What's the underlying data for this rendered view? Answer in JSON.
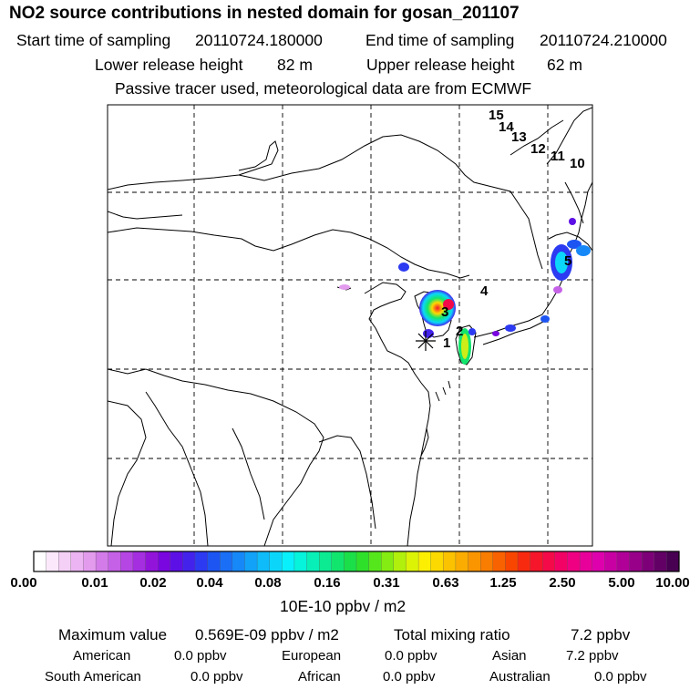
{
  "header": {
    "title": "NO2 source contributions in nested domain for gosan_201107",
    "start_label": "Start time of sampling",
    "start_value": "20110724.180000",
    "end_label": "End time of sampling",
    "end_value": "20110724.210000",
    "lower_label": "Lower release height",
    "lower_value": "82 m",
    "upper_label": "Upper release height",
    "upper_value": "62 m",
    "tracer_note": "Passive tracer used, meteorological data are from ECMWF"
  },
  "map": {
    "receptor_marker": "asterisk-icon",
    "coastline_color": "#000000",
    "grid_style": "dashed",
    "region_labels": [
      "1",
      "2",
      "3",
      "4",
      "5",
      "10",
      "11",
      "12",
      "13",
      "14",
      "15"
    ]
  },
  "colorbar": {
    "ticks": [
      "0.00",
      "0.01",
      "0.02",
      "0.04",
      "0.08",
      "0.16",
      "0.31",
      "0.63",
      "1.25",
      "2.50",
      "5.00",
      "10.00"
    ],
    "units": "10E-10 ppbv / m2",
    "colors": [
      "#ffffff",
      "#fbe8fb",
      "#f4d0f6",
      "#ecb4f2",
      "#e39bee",
      "#d37be9",
      "#c561e7",
      "#b646e4",
      "#a42ee0",
      "#9214da",
      "#7a06e0",
      "#5d10e6",
      "#4322ec",
      "#2c3af1",
      "#1d55f3",
      "#1a6ff6",
      "#1688f8",
      "#12a2f8",
      "#0fbcf9",
      "#0bd6fa",
      "#08f0fb",
      "#06f3dc",
      "#08efb8",
      "#0ceb92",
      "#12e56d",
      "#1bdf48",
      "#2fe02a",
      "#56e61c",
      "#84ec12",
      "#b0f00c",
      "#dcf306",
      "#fcef02",
      "#fcd900",
      "#fbc200",
      "#fbac00",
      "#fa9500",
      "#f97d00",
      "#f96200",
      "#f84600",
      "#f72a10",
      "#f5162b",
      "#f40a48",
      "#f30265",
      "#ef0082",
      "#e8009a",
      "#de00ad",
      "#c800a4",
      "#b10098",
      "#980089",
      "#7d0078",
      "#620066",
      "#480052"
    ]
  },
  "stats": {
    "max_label": "Maximum value",
    "max_value": "0.569E-09 ppbv / m2",
    "total_label": "Total mixing ratio",
    "total_value": "7.2 ppbv",
    "sources": [
      {
        "name": "American",
        "value": "0.0 ppbv"
      },
      {
        "name": "European",
        "value": "0.0 ppbv"
      },
      {
        "name": "Asian",
        "value": "7.2 ppbv"
      },
      {
        "name": "South American",
        "value": "0.0 ppbv"
      },
      {
        "name": "African",
        "value": "0.0 ppbv"
      },
      {
        "name": "Australian",
        "value": "0.0 ppbv"
      }
    ]
  }
}
